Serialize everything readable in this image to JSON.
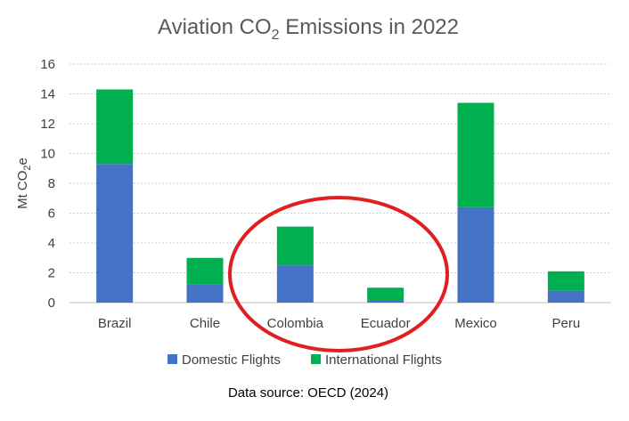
{
  "chart_data": {
    "type": "bar",
    "stacked": true,
    "title": "Aviation CO",
    "title_sub": "2",
    "title_rest": " Emissions in 2022",
    "ylabel": "Mt CO",
    "ylabel_sub": "2",
    "ylabel_rest": "e",
    "xlabel": "",
    "ylim": [
      0,
      16
    ],
    "yticks": [
      0,
      2,
      4,
      6,
      8,
      10,
      12,
      14,
      16
    ],
    "grid": true,
    "legend_position": "bottom",
    "categories": [
      "Brazil",
      "Chile",
      "Colombia",
      "Ecuador",
      "Mexico",
      "Peru"
    ],
    "series": [
      {
        "name": "Domestic Flights",
        "color": "#4472C4",
        "values": [
          9.3,
          1.2,
          2.5,
          0.15,
          6.4,
          0.8
        ]
      },
      {
        "name": "International Flights",
        "color": "#00B050",
        "values": [
          5.0,
          1.8,
          2.6,
          0.85,
          7.0,
          1.3
        ]
      }
    ],
    "annotation": {
      "shape": "ellipse",
      "color": "#E02020",
      "encloses": [
        "Colombia",
        "Ecuador"
      ]
    },
    "source": "Data source: OECD (2024)"
  }
}
